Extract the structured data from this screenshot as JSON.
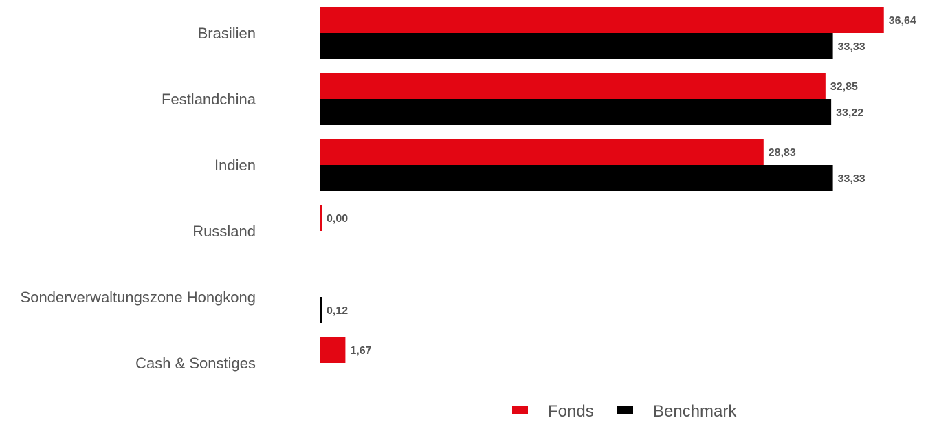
{
  "chart_data": {
    "type": "bar",
    "orientation": "horizontal",
    "categories": [
      "Brasilien",
      "Festlandchina",
      "Indien",
      "Russland",
      "Sonderverwaltungszone Hongkong",
      "Cash & Sonstiges"
    ],
    "series": [
      {
        "name": "Fonds",
        "color": "#e30613",
        "values": [
          36.64,
          32.85,
          28.83,
          0.0,
          null,
          1.67
        ],
        "labels": [
          "36,64",
          "32,85",
          "28,83",
          "0,00",
          "",
          "1,67"
        ]
      },
      {
        "name": "Benchmark",
        "color": "#000000",
        "values": [
          33.33,
          33.22,
          33.33,
          null,
          0.12,
          null
        ],
        "labels": [
          "33,33",
          "33,22",
          "33,33",
          "",
          "0,12",
          ""
        ]
      }
    ],
    "xlim": [
      0,
      37
    ],
    "grid": false,
    "legend_position": "bottom"
  }
}
